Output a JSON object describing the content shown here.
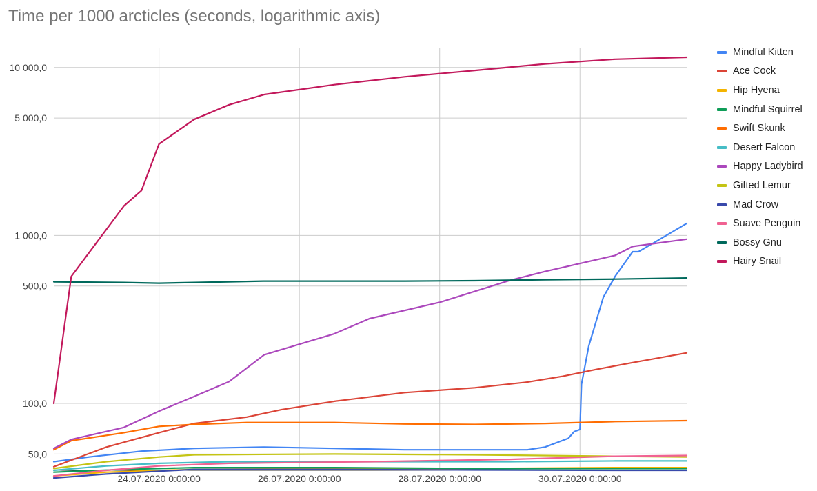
{
  "chart_data": {
    "type": "line",
    "title": "Time per 1000 arcticles (seconds, logarithmic axis)",
    "xlabel": "",
    "ylabel": "",
    "yscale": "log",
    "ylim": [
      40,
      13000
    ],
    "xlim": [
      "2020-07-22T12:00",
      "2020-07-31T12:30"
    ],
    "y_ticks": [
      {
        "value": 10000,
        "label": "10 000,0"
      },
      {
        "value": 5000,
        "label": "5 000,0"
      },
      {
        "value": 1000,
        "label": "1 000,0"
      },
      {
        "value": 500,
        "label": "500,0"
      },
      {
        "value": 100,
        "label": "100,0"
      },
      {
        "value": 50,
        "label": "50,0"
      }
    ],
    "x_ticks": [
      {
        "value": "2020-07-24T00:00",
        "label": "24.07.2020 0:00:00"
      },
      {
        "value": "2020-07-26T00:00",
        "label": "26.07.2020 0:00:00"
      },
      {
        "value": "2020-07-28T00:00",
        "label": "28.07.2020 0:00:00"
      },
      {
        "value": "2020-07-30T00:00",
        "label": "30.07.2020 0:00:00"
      }
    ],
    "grid": true,
    "legend_position": "right",
    "series": [
      {
        "name": "Mindful Kitten",
        "color": "#4285f4",
        "points": [
          [
            "2020-07-22T12:00",
            45
          ],
          [
            "2020-07-23T00:00",
            48
          ],
          [
            "2020-07-23T18:00",
            52
          ],
          [
            "2020-07-24T12:00",
            54
          ],
          [
            "2020-07-25T12:00",
            55
          ],
          [
            "2020-07-26T12:00",
            54
          ],
          [
            "2020-07-27T12:00",
            53
          ],
          [
            "2020-07-28T12:00",
            53
          ],
          [
            "2020-07-29T06:00",
            53
          ],
          [
            "2020-07-29T12:00",
            55
          ],
          [
            "2020-07-29T20:00",
            62
          ],
          [
            "2020-07-29T22:00",
            68
          ],
          [
            "2020-07-30T00:00",
            70
          ],
          [
            "2020-07-30T00:30",
            130
          ],
          [
            "2020-07-30T03:00",
            220
          ],
          [
            "2020-07-30T08:00",
            430
          ],
          [
            "2020-07-30T12:00",
            570
          ],
          [
            "2020-07-30T18:00",
            800
          ],
          [
            "2020-07-30T20:00",
            800
          ],
          [
            "2020-07-31T02:00",
            920
          ],
          [
            "2020-07-31T12:30",
            1180
          ]
        ]
      },
      {
        "name": "Ace Cock",
        "color": "#db4437",
        "points": [
          [
            "2020-07-22T12:00",
            42
          ],
          [
            "2020-07-23T06:00",
            55
          ],
          [
            "2020-07-24T00:00",
            67
          ],
          [
            "2020-07-24T12:00",
            76
          ],
          [
            "2020-07-25T06:00",
            83
          ],
          [
            "2020-07-25T18:00",
            92
          ],
          [
            "2020-07-26T12:00",
            103
          ],
          [
            "2020-07-27T12:00",
            116
          ],
          [
            "2020-07-28T12:00",
            124
          ],
          [
            "2020-07-29T06:00",
            134
          ],
          [
            "2020-07-29T18:00",
            145
          ],
          [
            "2020-07-30T06:00",
            160
          ],
          [
            "2020-07-30T18:00",
            175
          ],
          [
            "2020-07-31T12:30",
            200
          ]
        ]
      },
      {
        "name": "Hip Hyena",
        "color": "#f4b400",
        "points": [
          [
            "2020-07-22T12:00",
            37
          ],
          [
            "2020-07-23T06:00",
            39
          ],
          [
            "2020-07-24T12:00",
            40.5
          ],
          [
            "2020-07-26T12:00",
            41
          ],
          [
            "2020-07-28T12:00",
            41
          ],
          [
            "2020-07-30T12:00",
            41.5
          ],
          [
            "2020-07-31T12:30",
            41.5
          ]
        ]
      },
      {
        "name": "Mindful Squirrel",
        "color": "#0f9d58",
        "points": [
          [
            "2020-07-22T12:00",
            39
          ],
          [
            "2020-07-23T12:00",
            40.5
          ],
          [
            "2020-07-24T12:00",
            41.5
          ],
          [
            "2020-07-26T12:00",
            41.5
          ],
          [
            "2020-07-28T12:00",
            41
          ],
          [
            "2020-07-30T12:00",
            41
          ],
          [
            "2020-07-31T12:30",
            41
          ]
        ]
      },
      {
        "name": "Swift Skunk",
        "color": "#ff6d01",
        "points": [
          [
            "2020-07-22T12:00",
            53
          ],
          [
            "2020-07-22T18:00",
            60
          ],
          [
            "2020-07-23T12:00",
            67
          ],
          [
            "2020-07-24T00:00",
            73
          ],
          [
            "2020-07-24T12:00",
            75
          ],
          [
            "2020-07-25T06:00",
            77
          ],
          [
            "2020-07-26T12:00",
            77
          ],
          [
            "2020-07-27T12:00",
            75.5
          ],
          [
            "2020-07-28T12:00",
            75
          ],
          [
            "2020-07-29T12:00",
            76
          ],
          [
            "2020-07-30T12:00",
            78
          ],
          [
            "2020-07-31T12:30",
            79
          ]
        ]
      },
      {
        "name": "Desert Falcon",
        "color": "#46bdc6",
        "points": [
          [
            "2020-07-22T12:00",
            40
          ],
          [
            "2020-07-23T06:00",
            42.5
          ],
          [
            "2020-07-24T00:00",
            44
          ],
          [
            "2020-07-25T00:00",
            45
          ],
          [
            "2020-07-27T00:00",
            45
          ],
          [
            "2020-07-29T00:00",
            45
          ],
          [
            "2020-07-30T12:00",
            45.5
          ],
          [
            "2020-07-31T12:30",
            45.5
          ]
        ]
      },
      {
        "name": "Happy Ladybird",
        "color": "#ab47bc",
        "points": [
          [
            "2020-07-22T12:00",
            54
          ],
          [
            "2020-07-22T18:00",
            61
          ],
          [
            "2020-07-23T12:00",
            72
          ],
          [
            "2020-07-24T00:00",
            90
          ],
          [
            "2020-07-24T12:00",
            110
          ],
          [
            "2020-07-25T00:00",
            135
          ],
          [
            "2020-07-25T12:00",
            195
          ],
          [
            "2020-07-26T12:00",
            260
          ],
          [
            "2020-07-27T00:00",
            320
          ],
          [
            "2020-07-28T00:00",
            400
          ],
          [
            "2020-07-29T00:00",
            540
          ],
          [
            "2020-07-29T12:00",
            610
          ],
          [
            "2020-07-30T12:00",
            760
          ],
          [
            "2020-07-30T18:00",
            860
          ],
          [
            "2020-07-31T12:30",
            950
          ]
        ]
      },
      {
        "name": "Gifted Lemur",
        "color": "#c4c414",
        "points": [
          [
            "2020-07-22T12:00",
            41
          ],
          [
            "2020-07-23T06:00",
            45
          ],
          [
            "2020-07-24T00:00",
            48
          ],
          [
            "2020-07-24T12:00",
            49.5
          ],
          [
            "2020-07-26T12:00",
            50
          ],
          [
            "2020-07-28T12:00",
            49.5
          ],
          [
            "2020-07-30T12:00",
            48.5
          ],
          [
            "2020-07-31T12:30",
            48
          ]
        ]
      },
      {
        "name": "Mad Crow",
        "color": "#3949ab",
        "points": [
          [
            "2020-07-22T12:00",
            36
          ],
          [
            "2020-07-23T06:00",
            38
          ],
          [
            "2020-07-24T00:00",
            39.5
          ],
          [
            "2020-07-24T12:00",
            40.5
          ],
          [
            "2020-07-26T12:00",
            40.5
          ],
          [
            "2020-07-28T12:00",
            40.2
          ],
          [
            "2020-07-30T12:00",
            40
          ],
          [
            "2020-07-31T12:30",
            40
          ]
        ]
      },
      {
        "name": "Suave Penguin",
        "color": "#f06292",
        "points": [
          [
            "2020-07-22T12:00",
            37
          ],
          [
            "2020-07-23T06:00",
            40
          ],
          [
            "2020-07-24T00:00",
            42.5
          ],
          [
            "2020-07-25T00:00",
            44
          ],
          [
            "2020-07-27T00:00",
            45
          ],
          [
            "2020-07-29T00:00",
            46.5
          ],
          [
            "2020-07-30T12:00",
            48.5
          ],
          [
            "2020-07-31T12:30",
            49
          ]
        ]
      },
      {
        "name": "Bossy Gnu",
        "color": "#00695c",
        "points": [
          [
            "2020-07-22T12:00",
            530
          ],
          [
            "2020-07-23T12:00",
            525
          ],
          [
            "2020-07-24T00:00",
            520
          ],
          [
            "2020-07-24T12:00",
            525
          ],
          [
            "2020-07-25T12:00",
            535
          ],
          [
            "2020-07-26T12:00",
            535
          ],
          [
            "2020-07-27T12:00",
            535
          ],
          [
            "2020-07-28T12:00",
            538
          ],
          [
            "2020-07-29T12:00",
            545
          ],
          [
            "2020-07-30T12:00",
            550
          ],
          [
            "2020-07-31T12:30",
            558
          ]
        ]
      },
      {
        "name": "Hairy Snail",
        "color": "#c2185b",
        "points": [
          [
            "2020-07-22T12:00",
            100
          ],
          [
            "2020-07-22T18:00",
            570
          ],
          [
            "2020-07-23T12:00",
            1500
          ],
          [
            "2020-07-23T18:00",
            1850
          ],
          [
            "2020-07-24T00:00",
            3500
          ],
          [
            "2020-07-24T12:00",
            4900
          ],
          [
            "2020-07-25T00:00",
            6000
          ],
          [
            "2020-07-25T12:00",
            6900
          ],
          [
            "2020-07-26T12:00",
            7900
          ],
          [
            "2020-07-27T12:00",
            8800
          ],
          [
            "2020-07-28T12:00",
            9600
          ],
          [
            "2020-07-29T12:00",
            10500
          ],
          [
            "2020-07-30T12:00",
            11200
          ],
          [
            "2020-07-31T12:30",
            11500
          ]
        ]
      }
    ]
  }
}
